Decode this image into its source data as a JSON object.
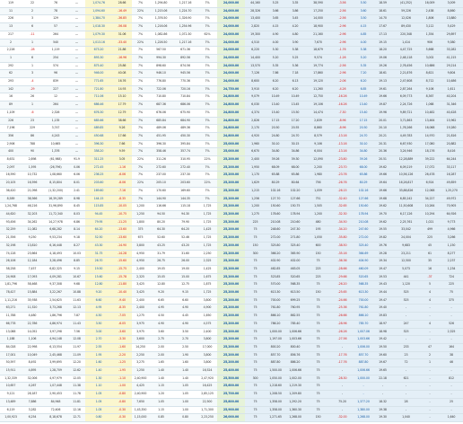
{
  "rows": [
    [
      "119",
      "22",
      "76",
      "—",
      "1,074.76",
      "28.66",
      "7%",
      "1,294.80",
      "1,217.16",
      "7%",
      "24,000.00",
      "44,160",
      "5.25",
      "3.35",
      "38,590",
      "-3.56",
      "5.50",
      "18.59",
      "(41,252)",
      "16,009",
      "3,009"
    ],
    [
      "11",
      "2",
      "78",
      "—",
      "1,094.60",
      "-16.49",
      "22%",
      "1,215.06",
      "1,224.70",
      "7%",
      "24,000.00",
      "28,326",
      "3.66",
      "3.86",
      "17,250",
      "-2.56",
      "3.60",
      "18.61",
      "59,226",
      "2,438",
      "8,860"
    ],
    [
      "226",
      "3",
      "129",
      "—",
      "1,384.70",
      "-36.85",
      "7%",
      "1,376.50",
      "1,326.90",
      "7%",
      "24,000.00",
      "13,400",
      "3.65",
      "3.45",
      "14,000",
      "-2.56",
      "3.50",
      "14.70",
      "12,026",
      "1,806",
      "13,880"
    ],
    [
      "13",
      "6",
      "57",
      "—",
      "1,018.30",
      "-56.08",
      "7%",
      "1,216.06",
      "1,254.96",
      "7%",
      "24,000.00",
      "2,820",
      "4.15",
      "4.20",
      "18,900",
      "-2.96",
      "4.15",
      "17.67",
      "89,430",
      "3,112",
      "5,429"
    ],
    [
      "217",
      "-11",
      "264",
      "—",
      "1,079.30",
      "31.06",
      "7%",
      "1,082.86",
      "1,072.30",
      "62%",
      "24,000.00",
      "19,300",
      "4.90",
      "4.80",
      "21,160",
      "-2.96",
      "4.85",
      "17.13",
      "220,348",
      "1,354",
      "29,897"
    ],
    [
      "2",
      "1",
      "540",
      "—",
      "1,013.16",
      "-33.40",
      "22%",
      "1,226.50",
      "1,217.16",
      "7%",
      "24,000.00",
      "4,510",
      "4.00",
      "3.90",
      "7,670",
      "-2.96",
      "4.00",
      "19.15",
      "1,414",
      "906",
      "9,380"
    ],
    [
      "2,226",
      "-28",
      "1,119",
      "—",
      "673.20",
      "21.86",
      "7%",
      "567.50",
      "671.36",
      "7%",
      "24,000.00",
      "6,220",
      "5.30",
      "5.38",
      "18,679",
      "-1.76",
      "5.38",
      "18.20",
      "4,47,725",
      "5,668",
      "33,282"
    ],
    [
      "1",
      "6",
      "254",
      "—",
      "893.30",
      "-16.96",
      "7%",
      "994.30",
      "892.56",
      "7%",
      "24,000.00",
      "14,400",
      "5.20",
      "5.25",
      "9,574",
      "-1.26",
      "5.20",
      "19.06",
      "2,48,118",
      "3,002",
      "41,215"
    ],
    [
      "292",
      "1",
      "574",
      "—",
      "875.40",
      "25.86",
      "7%",
      "898.60",
      "874.56",
      "7%",
      "24,000.00",
      "13,570",
      "5.35",
      "5.36",
      "19,774",
      "-2.56",
      "5.35",
      "19.26",
      "2,76,456",
      "10,686",
      "29,214"
    ],
    [
      "62",
      "3",
      "96",
      "—",
      "946.00",
      "40.08",
      "7%",
      "946.10",
      "945.56",
      "7%",
      "24,000.00",
      "7,126",
      "7.86",
      "7.18",
      "17,860",
      "-2.96",
      "7.20",
      "18.61",
      "2,21,876",
      "8,621",
      "9,804"
    ],
    [
      "293",
      "-4",
      "839",
      "—",
      "771.65",
      "16.76",
      "7%",
      "776.80",
      "770.36",
      "7%",
      "24,000.00",
      "8,600",
      "6.20",
      "6.13",
      "19,120",
      "-2.06",
      "6.20",
      "19.13",
      "2,47,608",
      "8,712",
      "10,486"
    ],
    [
      "142",
      "-29",
      "227",
      "—",
      "721.80",
      "14.93",
      "7%",
      "722.06",
      "720.16",
      "7%",
      "24,750.00",
      "3,910",
      "6.20",
      "6.20",
      "11,260",
      "-4.26",
      "6.85",
      "19.61",
      "2,87,264",
      "9,106",
      "1,611"
    ],
    [
      "16",
      "26",
      "12",
      "—",
      "711.06",
      "15.10",
      "7%",
      "710.80",
      "710.84",
      "7%",
      "24,800.00",
      "9,079",
      "10.49",
      "10.49",
      "12,750",
      "-16.26",
      "10.49",
      "19.66",
      "6,09,773",
      "8,367",
      "40,204"
    ],
    [
      "89",
      "1",
      "264",
      "—",
      "686.46",
      "17.79",
      "7%",
      "687.36",
      "686.06",
      "7%",
      "24,800.00",
      "6,030",
      "13.40",
      "13.45",
      "19,106",
      "-16.26",
      "13.40",
      "19.87",
      "2,24,726",
      "1,068",
      "31,346"
    ],
    [
      "1,109",
      "-6",
      "2,326",
      "—",
      "676.30",
      "12.79",
      "7%",
      "676.06",
      "675.90",
      "7%",
      "24,800.00",
      "4,374",
      "15.40",
      "15.50",
      "14,474",
      "-7.30",
      "15.40",
      "19.96",
      "9,89,721",
      "10,482",
      "40,428"
    ],
    [
      "226",
      "23",
      "1,135",
      "—",
      "685.66",
      "38.66",
      "7%",
      "685.84",
      "684.90",
      "7%",
      "24,800.00",
      "2,826",
      "17.15",
      "17.20",
      "2,839",
      "-8.96",
      "17.15",
      "20.01",
      "3,71,863",
      "13,464",
      "15,962"
    ],
    [
      "7,196",
      "229",
      "3,747",
      "—",
      "489.85",
      "9.26",
      "7%",
      "489.06",
      "489.36",
      "7%",
      "24,800.00",
      "2,170",
      "20.50",
      "20.55",
      "8,860",
      "-8.96",
      "20.50",
      "20.10",
      "1,76,266",
      "16,068",
      "19,280"
    ],
    [
      "356",
      "86",
      "4,243",
      "—",
      "450.68",
      "17.66",
      "7%",
      "451.95",
      "450.30",
      "7%",
      "24,800.00",
      "4,920",
      "24.80",
      "24.70",
      "8,579",
      "-13.16",
      "24.70",
      "20.21",
      "4,49,783",
      "14,970",
      "21,816"
    ],
    [
      "2,906",
      "788",
      "10,665",
      "—",
      "396.30",
      "7.66",
      "7%",
      "396.30",
      "395.84",
      "7%",
      "25,000.00",
      "1,960",
      "30.10",
      "30.15",
      "9,106",
      "-13.16",
      "30.10",
      "20.31",
      "6,67,930",
      "17,080",
      "20,882"
    ],
    [
      "400",
      "90",
      "1,376",
      "—",
      "358.20",
      "9.59",
      "7%",
      "358.46",
      "357.74",
      "7%",
      "25,000.00",
      "6,670",
      "34.80",
      "34.86",
      "6,004",
      "-13.16",
      "34.80",
      "20.36",
      "3,24,946",
      "18,176",
      "8,416"
    ],
    [
      "8,631",
      "2,898",
      "(61,988)",
      "91.9",
      "311.25",
      "3.05",
      "22%",
      "311.26",
      "310.95",
      "22%",
      "25,200.00",
      "2,400",
      "39.26",
      "39.30",
      "12,090",
      "-23.80",
      "39.26",
      "20.51",
      "12,28,889",
      "39,222",
      "64,244"
    ],
    [
      "2,097",
      "1,595",
      "(26,796)",
      "0.06",
      "272.45",
      "-1.16",
      "7%",
      "272.60",
      "272.40",
      "7%",
      "25,200.00",
      "1,950",
      "68.09",
      "68.00",
      "2,200",
      "-23.70",
      "68.00",
      "19.62",
      "6,09,219",
      "17,072",
      "33,117"
    ],
    [
      "16,590",
      "10,732",
      "1,08,660",
      "6.06",
      "236.25",
      "-6.06",
      "7%",
      "237.00",
      "237.30",
      "7%",
      "25,200.00",
      "1,170",
      "65.88",
      "65.86",
      "1,980",
      "-23.76",
      "65.86",
      "19.66",
      "10,56,126",
      "26,478",
      "16,287"
    ],
    [
      "20,105",
      "16,596",
      "8,15,804",
      "8.01",
      "203.60",
      "-8.06",
      "22%",
      "205.10",
      "203.60",
      "22%",
      "25,200.00",
      "1,629",
      "80.29",
      "80.64",
      "756",
      "-26.76",
      "80.29",
      "19.64",
      "16,26,817",
      "6,924",
      "49,859"
    ],
    [
      "36,420",
      "21,098",
      "(1,32,200)",
      "2.41",
      "169.60",
      "-7.16",
      "7%",
      "170.60",
      "169.60",
      "7%",
      "25,200.00",
      "1,215",
      "102.16",
      "102.20",
      "1,059",
      "-26.15",
      "102.16",
      "19.66",
      "33,88,826",
      "12,068",
      "1,25,270"
    ],
    [
      "8,589",
      "38,566",
      "16,39,289",
      "8.98",
      "144.15",
      "-8.35",
      "7%",
      "144.90",
      "144.35",
      "7%",
      "25,200.00",
      "1,256",
      "127.70",
      "127.66",
      "751",
      "-32.40",
      "127.66",
      "19.68",
      "6,85,242",
      "34,227",
      "49,972"
    ],
    [
      "1,24,768",
      "46,216",
      "31,96,890",
      "8.45",
      "115.85",
      "-10.05",
      "1,200",
      "116.66",
      "115.18",
      "1,725",
      "25,200.00",
      "1,200",
      "150.60",
      "150.75",
      "1,505",
      "-32.65",
      "150.60",
      "19.62",
      "11,50,608",
      "10,264",
      "70,905"
    ],
    [
      "44,620",
      "32,203",
      "11,72,340",
      "8.03",
      "94.45",
      "-10.75",
      "1,250",
      "94.50",
      "94.30",
      "1,725",
      "25,200.00",
      "1,275",
      "178.60",
      "178.94",
      "1,200",
      "-32.30",
      "178.94",
      "19.70",
      "6,17,126",
      "10,294",
      "64,926"
    ],
    [
      "93,456",
      "34,262",
      "14,27,978",
      "6.86",
      "79.95",
      "-11.25",
      "1,800",
      "80.20",
      "79.90",
      "1,725",
      "25,200.00",
      "225",
      "210.08",
      "210.60",
      "480",
      "-34.50",
      "210.08",
      "19.62",
      "2,25,761",
      "1,021",
      "9,773"
    ],
    [
      "32,259",
      "11,082",
      "6,68,282",
      "8.14",
      "64.20",
      "-13.60",
      "375",
      "64.30",
      "64.20",
      "1,425",
      "25,200.00",
      "75",
      "248.60",
      "247.30",
      "195",
      "-34.20",
      "247.60",
      "19.55",
      "33,042",
      "499",
      "4,966"
    ],
    [
      "21,556",
      "9,250",
      "9,53,234",
      "9.18",
      "52.50",
      "-13.60",
      "675",
      "52.60",
      "52.46",
      "1,725",
      "25,200.00",
      "75",
      "272.00",
      "271.80",
      "1,050",
      "-35.80",
      "272.00",
      "19.82",
      "24,004",
      "225",
      "3,266"
    ],
    [
      "32,198",
      "13,810",
      "6,16,448",
      "8.27",
      "43.30",
      "-14.90",
      "3,800",
      "43.25",
      "43.20",
      "1,725",
      "25,200.00",
      "150",
      "325.80",
      "325.40",
      "600",
      "-38.50",
      "325.40",
      "19.76",
      "9,683",
      "45",
      "1,150"
    ],
    [
      "74,128",
      "23,664",
      "4,18,493",
      "10.03",
      "31.75",
      "-14.28",
      "4,950",
      "31.79",
      "31.60",
      "2,250",
      "25,200.00",
      "300",
      "366.20",
      "365.90",
      "150",
      "-35.16",
      "364.69",
      "19.28",
      "23,211",
      "61",
      "8,277"
    ],
    [
      "26,106",
      "12,184",
      "3,28,496",
      "8.85",
      "26.70",
      "-15.60",
      "4,950",
      "26.75",
      "26.00",
      "2,325",
      "25,200.00",
      "75",
      "402.90",
      "402.00",
      "75",
      "-36.36",
      "404.90",
      "19.34",
      "12,500",
      "35",
      "2,237"
    ],
    [
      "58,258",
      "7,457",
      "6,82,325",
      "9.15",
      "19.50",
      "-15.75",
      "2,400",
      "19.05",
      "19.00",
      "1,425",
      "25,200.00",
      "75",
      "462.85",
      "463.05",
      "225",
      "-28.66",
      "460.09",
      "19.47",
      "5,073",
      "16",
      "1,234"
    ],
    [
      "24,908",
      "17,093",
      "4,09,281",
      "10.67",
      "15.60",
      "-15.78",
      "2,325",
      "15.05",
      "15.00",
      "1,675",
      "25,200.00",
      "75",
      "523.85",
      "520.65",
      "225",
      "-29.66",
      "520.65",
      "19.53",
      "441",
      "-37",
      "724"
    ],
    [
      "1,81,796",
      "58,468",
      "9,37,308",
      "9.68",
      "12.80",
      "-11.80",
      "3,425",
      "12.80",
      "12.75",
      "1,875",
      "25,200.00",
      "75",
      "570.00",
      "568.35",
      "75",
      "-26.20",
      "568.35",
      "19.43",
      "1,120",
      "5",
      "225"
    ],
    [
      "78,427",
      "15,884",
      "3,22,267",
      "10.88",
      "9.20",
      "-10.40",
      "3,425",
      "9.20",
      "9.15",
      "1,725",
      "25,200.00",
      "75",
      "613.30",
      "613.50",
      "150",
      "-25.65",
      "613.30",
      "19.44",
      "525",
      "4",
      "75"
    ],
    [
      "1,11,216",
      "35,938",
      "2,54,625",
      "11.63",
      "6.60",
      "-9.40",
      "2,400",
      "6.65",
      "6.60",
      "3,800",
      "25,200.00",
      "75",
      "700.00",
      "699.25",
      "75",
      "-24.66",
      "700.00",
      "19.47",
      "525",
      "4",
      "375"
    ],
    [
      "63,271",
      "11,520",
      "3,73,268",
      "12.13",
      "4.95",
      "-8.35",
      "2,400",
      "4.95",
      "4.90",
      "4,900",
      "25,200.00",
      "75",
      "761.80",
      "760.95",
      "75",
      "-25.36",
      "761.80",
      "19.40",
      "-",
      "-",
      "-"
    ],
    [
      "11,788",
      "4,480",
      "1,86,796",
      "7.87",
      "4.50",
      "-7.05",
      "1,275",
      "4.50",
      "4.45",
      "1,650",
      "25,200.00",
      "75",
      "866.10",
      "862.55",
      "75",
      "-26.66",
      "866.10",
      "19.83",
      "-",
      "-",
      "-"
    ],
    [
      "66,778",
      "22,786",
      "4,86,974",
      "11.43",
      "3.50",
      "-6.05",
      "3,975",
      "4.90",
      "4.90",
      "4,575",
      "25,200.00",
      "75",
      "786.20",
      "785.40",
      "75",
      "-28.96",
      "785.70",
      "18.97",
      "247",
      "4",
      "526"
    ],
    [
      "13,088",
      "14,052",
      "3,97,298",
      "7.56",
      "3.00",
      "-3.60",
      "3,975",
      "3.60",
      "3.50",
      "2,400",
      "25,200.00",
      "75",
      "1,000.00",
      "1,006.66",
      "75",
      "-26.26",
      "1,007.06",
      "18.98",
      "525",
      "-",
      "2,325"
    ],
    [
      "1,188",
      "1,106",
      "4,94,148",
      "12.08",
      "2.70",
      "-3.30",
      "3,600",
      "2.75",
      "2.70",
      "3,800",
      "25,200.00",
      "75",
      "1,197.00",
      "1,003.66",
      "75",
      "-27.56",
      "1,003.66",
      "19.42",
      "-",
      "-",
      "-"
    ],
    [
      "84,028",
      "22,998",
      "6,13,554",
      "11.97",
      "2.55",
      "-1.60",
      "14,250",
      "2.00",
      "2.50",
      "17,000",
      "25,200.00",
      "75",
      "800.20",
      "800.40",
      "75",
      "-",
      "1,006.00",
      "19.50",
      "233",
      "47",
      "164"
    ],
    [
      "17,001",
      "10,049",
      "2,45,468",
      "11.09",
      "1.95",
      "-2.20",
      "2,250",
      "2.00",
      "1.90",
      "3,800",
      "25,200.00",
      "75",
      "857.70",
      "856.76",
      "75",
      "-17.76",
      "857.70",
      "19.60",
      "23",
      "2",
      "38"
    ],
    [
      "50,597",
      "8,492",
      "3,99,695",
      "12.20",
      "1.60",
      "-1.25",
      "3,275",
      "1.65",
      "1.60",
      "3,800",
      "25,200.00",
      "75",
      "887.80",
      "886.20",
      "75",
      "-17.76",
      "887.80",
      "19.67",
      "72",
      "1",
      "46"
    ],
    [
      "15,911",
      "4,895",
      "1,28,709",
      "12.62",
      "1.40",
      "-1.95",
      "1,250",
      "1.40",
      "1.40",
      "16,524",
      "25,400.00",
      "75",
      "1,500.00",
      "1,006.66",
      "75",
      "-",
      "1,006.66",
      "19.65",
      "-",
      "-",
      "-"
    ],
    [
      "1,32,339",
      "32,006",
      "4,97,979",
      "12.05",
      "1.30",
      "-1.10",
      "2,40,900",
      "1.40",
      "1.40",
      "2,47,920",
      "25,500.00",
      "300",
      "1,050.00",
      "1,002.00",
      "75",
      "-28.30",
      "1,000.00",
      "22.18",
      "621",
      "-",
      "812"
    ],
    [
      "10,657",
      "4,267",
      "1,07,448",
      "11.38",
      "1.10",
      "-1.00",
      "4,425",
      "1.15",
      "1.05",
      "16,425",
      "25,600.00",
      "75",
      "1,218.60",
      "1,219.30",
      "75",
      "-",
      "-",
      "-",
      "-",
      "-",
      "-"
    ],
    [
      "9,121",
      "28,187",
      "2,90,453",
      "11.78",
      "1.05",
      "-0.80",
      "2,40,900",
      "1.20",
      "1.05",
      "2,85,125",
      "25,700.00",
      "75",
      "1,208.50",
      "1,209.80",
      "75",
      "-",
      "-",
      "-",
      "-",
      "-",
      "-"
    ],
    [
      "13,489",
      "7,886",
      "84,948",
      "11.81",
      "1.05",
      "-0.80",
      "7,650",
      "1.05",
      "1.00",
      "22,500",
      "25,800.00",
      "75",
      "1,358.00",
      "1,292.20",
      "75",
      "75.20",
      "1,377.20",
      "18.32",
      "28",
      "-",
      "25"
    ],
    [
      "6,119",
      "3,282",
      "72,406",
      "12.16",
      "1.05",
      "-0.30",
      "1,43,350",
      "1.15",
      "1.00",
      "1,71,300",
      "25,900.00",
      "75",
      "1,358.00",
      "1,360.30",
      "75",
      "-",
      "1,380.00",
      "19.38",
      "-",
      "-",
      "-"
    ],
    [
      "1,00,923",
      "6,254",
      "8,18,678",
      "12.71",
      "0.80",
      "-0.30",
      "1,15,000",
      "0.85",
      "0.80",
      "2,23,250",
      "26,000.00",
      "75",
      "1,271.65",
      "1,268.00",
      "150",
      "-32.00",
      "1,268.00",
      "19.30",
      "1,040",
      "-",
      "1,640"
    ]
  ]
}
